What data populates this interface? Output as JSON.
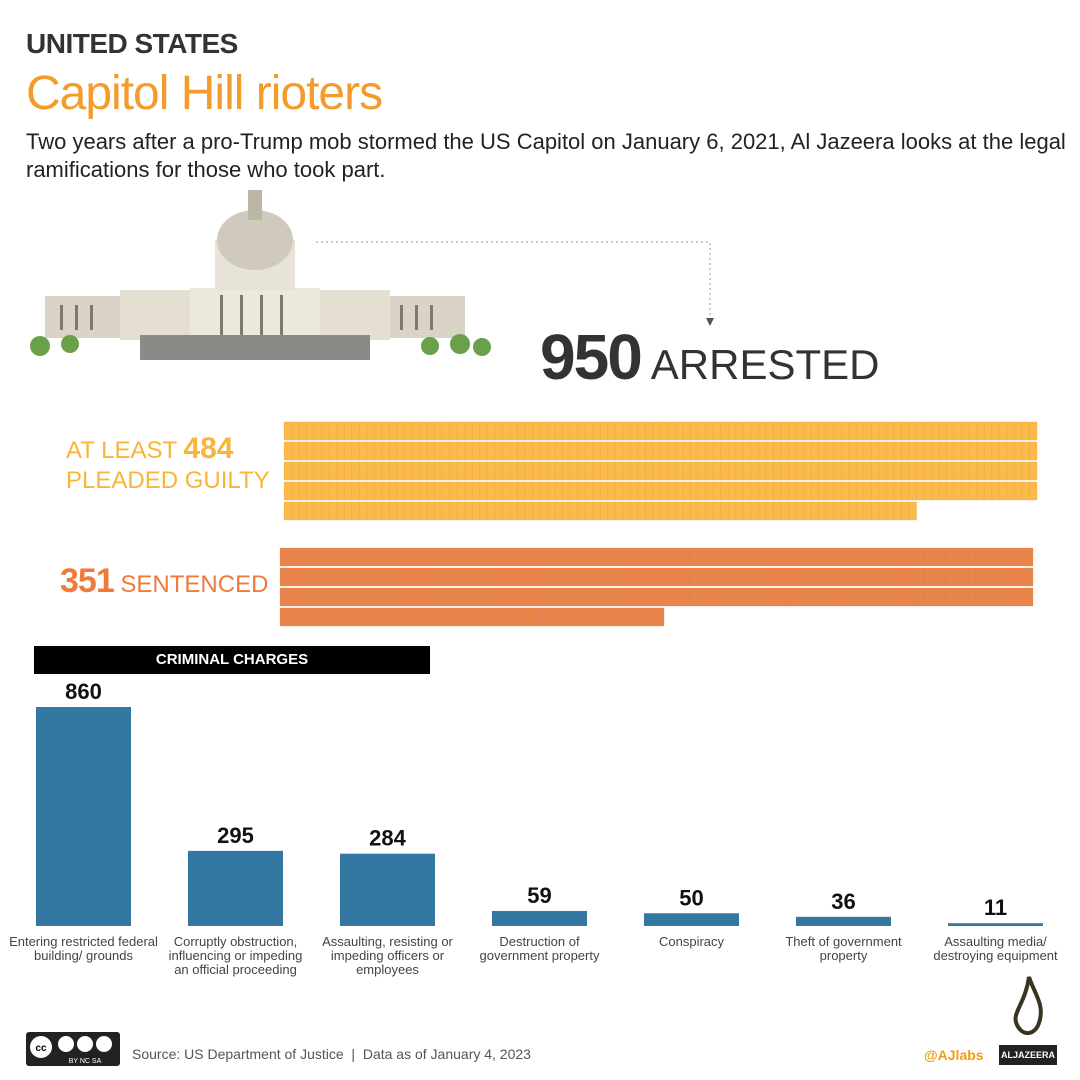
{
  "header": {
    "kicker": "UNITED STATES",
    "title": "Capitol Hill rioters",
    "subtitle": "Two years after a pro-Trump mob stormed the US Capitol on January 6, 2021, Al Jazeera looks at the legal ramifications for those who took part."
  },
  "arrested": {
    "value": "950",
    "label": "ARRESTED"
  },
  "guilty": {
    "prefix": "AT LEAST",
    "value": "484",
    "label": "PLEADED GUILTY",
    "count": 484,
    "color": "#fbbb4c"
  },
  "sentenced": {
    "value": "351",
    "label": "SENTENCED",
    "count": 351,
    "color": "#e8834e"
  },
  "waffle_units_per_row": 100,
  "chart_data": {
    "type": "bar",
    "title": "CRIMINAL CHARGES",
    "categories": [
      "Entering restricted federal building/ grounds",
      "Corruptly obstruction, influencing or impeding an official proceeding",
      "Assaulting, resisting or impeding officers or employees",
      "Destruction of government property",
      "Conspiracy",
      "Theft of government property",
      "Assaulting media/ destroying equipment"
    ],
    "values": [
      860,
      295,
      284,
      59,
      50,
      36,
      11
    ],
    "color": "#3577a3",
    "ylim": [
      0,
      860
    ],
    "grid": false
  },
  "footer": {
    "source": "Source: US Department of Justice  |  Data as of January 4, 2023",
    "license": "BY NC SA",
    "handle": "@AJlabs",
    "brand": "ALJAZEERA"
  }
}
